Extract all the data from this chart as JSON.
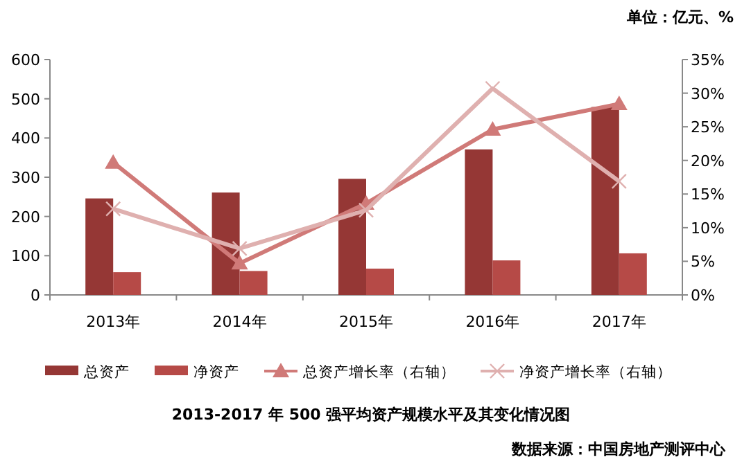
{
  "chart_data": {
    "type": "bar",
    "title": "2013-2017 年 500 强平均资产规模水平及其变化情况图",
    "categories": [
      "2013年",
      "2014年",
      "2015年",
      "2016年",
      "2017年"
    ],
    "series": [
      {
        "name": "总资产",
        "color": "#953735",
        "values": [
          246,
          261,
          296,
          371,
          479
        ]
      },
      {
        "name": "净资产",
        "color": "#b64a47",
        "values": [
          58,
          61,
          67,
          88,
          106
        ]
      },
      {
        "name": "总资产增长率（右轴）",
        "type": "line",
        "axis": "y2",
        "marker": "triangle",
        "color": "#d07a78",
        "values": [
          19.7,
          4.7,
          13.6,
          24.6,
          28.4
        ]
      },
      {
        "name": "净资产增长率（右轴）",
        "type": "line",
        "axis": "y2",
        "marker": "cross",
        "color": "#dfb0af",
        "values": [
          12.8,
          6.9,
          12.6,
          30.7,
          16.9
        ]
      }
    ],
    "ylim": [
      0,
      600
    ],
    "yticks": [
      0,
      100,
      200,
      300,
      400,
      500,
      600
    ],
    "y2lim": [
      0,
      35
    ],
    "y2ticks": [
      {
        "value": 0,
        "label": "0%"
      },
      {
        "value": 5,
        "label": "5%"
      },
      {
        "value": 10,
        "label": "10%"
      },
      {
        "value": 15,
        "label": "15%"
      },
      {
        "value": 20,
        "label": "20%"
      },
      {
        "value": 25,
        "label": "25%"
      },
      {
        "value": 30,
        "label": "30%"
      },
      {
        "value": 35,
        "label": "35%"
      }
    ],
    "grid": false,
    "legend": "bottom",
    "annotations": [
      "单位：亿元、%",
      "数据来源：中国房地产测评中心"
    ]
  }
}
